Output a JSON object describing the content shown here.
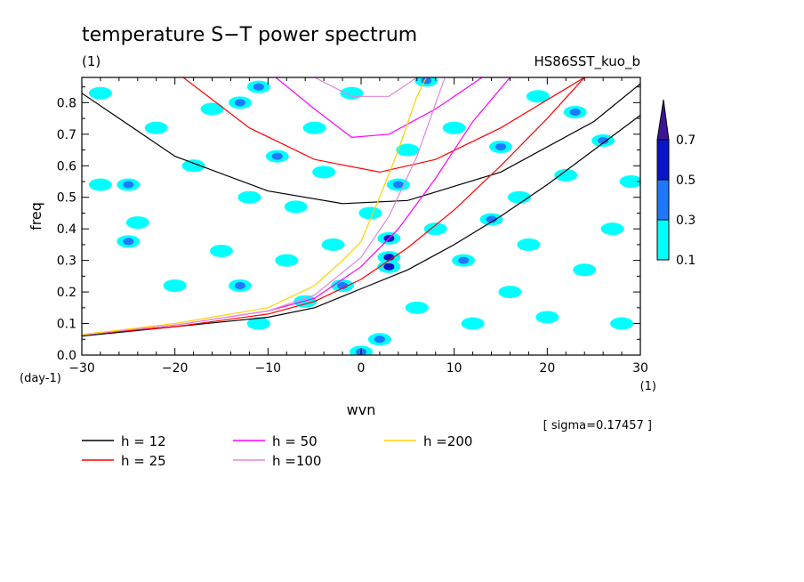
{
  "chart_data": {
    "type": "heatmap",
    "title": "temperature S−T power spectrum",
    "top_left_label": "(1)",
    "top_right_label": "HS86SST_kuo_b",
    "xlabel": "wvn",
    "x_unit": "(1)",
    "ylabel": "freq",
    "y_unit": "(day-1)",
    "xlim": [
      -30,
      30
    ],
    "ylim": [
      0,
      0.88
    ],
    "x_ticks": [
      -30,
      -20,
      -10,
      0,
      10,
      20,
      30
    ],
    "y_ticks": [
      0.0,
      0.1,
      0.2,
      0.3,
      0.4,
      0.5,
      0.6,
      0.7,
      0.8
    ],
    "sigma_note": "[ sigma=0.17457 ]",
    "colorbar": {
      "levels": [
        "0.1",
        "0.3",
        "0.5",
        "0.7"
      ],
      "colors": [
        "#00ffff",
        "#1e78ff",
        "#0a14c8",
        "#3c1496"
      ]
    },
    "contour_blobs": [
      {
        "x": -28,
        "y": 0.83,
        "level": 0.1
      },
      {
        "x": -25,
        "y": 0.54,
        "level": 0.3
      },
      {
        "x": -28,
        "y": 0.54,
        "level": 0.1
      },
      {
        "x": -24,
        "y": 0.42,
        "level": 0.1
      },
      {
        "x": -25,
        "y": 0.36,
        "level": 0.3
      },
      {
        "x": -22,
        "y": 0.72,
        "level": 0.1
      },
      {
        "x": -20,
        "y": 0.22,
        "level": 0.1
      },
      {
        "x": -18,
        "y": 0.6,
        "level": 0.1
      },
      {
        "x": -16,
        "y": 0.78,
        "level": 0.1
      },
      {
        "x": -15,
        "y": 0.33,
        "level": 0.1
      },
      {
        "x": -13,
        "y": 0.8,
        "level": 0.3
      },
      {
        "x": -13,
        "y": 0.22,
        "level": 0.3
      },
      {
        "x": -12,
        "y": 0.5,
        "level": 0.1
      },
      {
        "x": -11,
        "y": 0.1,
        "level": 0.1
      },
      {
        "x": -11,
        "y": 0.85,
        "level": 0.3
      },
      {
        "x": -9,
        "y": 0.63,
        "level": 0.3
      },
      {
        "x": -8,
        "y": 0.3,
        "level": 0.1
      },
      {
        "x": -7,
        "y": 0.47,
        "level": 0.1
      },
      {
        "x": -6,
        "y": 0.17,
        "level": 0.1
      },
      {
        "x": -5,
        "y": 0.72,
        "level": 0.1
      },
      {
        "x": -4,
        "y": 0.58,
        "level": 0.1
      },
      {
        "x": -3,
        "y": 0.35,
        "level": 0.1
      },
      {
        "x": -2,
        "y": 0.22,
        "level": 0.3
      },
      {
        "x": -1,
        "y": 0.83,
        "level": 0.1
      },
      {
        "x": 0,
        "y": 0.01,
        "level": 0.3
      },
      {
        "x": 1,
        "y": 0.45,
        "level": 0.1
      },
      {
        "x": 2,
        "y": 0.05,
        "level": 0.3
      },
      {
        "x": 3,
        "y": 0.37,
        "level": 0.5
      },
      {
        "x": 3,
        "y": 0.31,
        "level": 0.5
      },
      {
        "x": 3,
        "y": 0.28,
        "level": 0.5
      },
      {
        "x": 4,
        "y": 0.54,
        "level": 0.3
      },
      {
        "x": 5,
        "y": 0.65,
        "level": 0.1
      },
      {
        "x": 6,
        "y": 0.15,
        "level": 0.1
      },
      {
        "x": 7,
        "y": 0.87,
        "level": 0.3
      },
      {
        "x": 8,
        "y": 0.4,
        "level": 0.1
      },
      {
        "x": 10,
        "y": 0.72,
        "level": 0.1
      },
      {
        "x": 11,
        "y": 0.3,
        "level": 0.3
      },
      {
        "x": 12,
        "y": 0.1,
        "level": 0.1
      },
      {
        "x": 14,
        "y": 0.43,
        "level": 0.3
      },
      {
        "x": 15,
        "y": 0.66,
        "level": 0.3
      },
      {
        "x": 16,
        "y": 0.2,
        "level": 0.1
      },
      {
        "x": 17,
        "y": 0.5,
        "level": 0.1
      },
      {
        "x": 18,
        "y": 0.35,
        "level": 0.1
      },
      {
        "x": 19,
        "y": 0.82,
        "level": 0.1
      },
      {
        "x": 20,
        "y": 0.12,
        "level": 0.1
      },
      {
        "x": 22,
        "y": 0.57,
        "level": 0.1
      },
      {
        "x": 23,
        "y": 0.77,
        "level": 0.3
      },
      {
        "x": 24,
        "y": 0.27,
        "level": 0.1
      },
      {
        "x": 26,
        "y": 0.68,
        "level": 0.3
      },
      {
        "x": 27,
        "y": 0.4,
        "level": 0.1
      },
      {
        "x": 28,
        "y": 0.1,
        "level": 0.1
      },
      {
        "x": 29,
        "y": 0.55,
        "level": 0.1
      }
    ],
    "dispersion_curves": [
      {
        "name": "h = 12",
        "color": "#000000",
        "points": [
          [
            -30,
            0.83
          ],
          [
            -20,
            0.63
          ],
          [
            -10,
            0.52
          ],
          [
            -2,
            0.48
          ],
          [
            5,
            0.49
          ],
          [
            15,
            0.58
          ],
          [
            25,
            0.74
          ],
          [
            30,
            0.86
          ]
        ]
      },
      {
        "name": "h = 25",
        "color": "#ff0000",
        "points": [
          [
            -20,
            0.9
          ],
          [
            -12,
            0.72
          ],
          [
            -5,
            0.62
          ],
          [
            2,
            0.58
          ],
          [
            8,
            0.62
          ],
          [
            15,
            0.72
          ],
          [
            24,
            0.88
          ]
        ]
      },
      {
        "name": "h = 50",
        "color": "#ff00ff",
        "points": [
          [
            -10,
            0.9
          ],
          [
            -5,
            0.78
          ],
          [
            -1,
            0.69
          ],
          [
            3,
            0.7
          ],
          [
            8,
            0.78
          ],
          [
            13,
            0.88
          ]
        ]
      },
      {
        "name": "h =100",
        "color": "#dd88dd",
        "points": [
          [
            -5,
            0.88
          ],
          [
            -1,
            0.82
          ],
          [
            3,
            0.82
          ],
          [
            6,
            0.88
          ]
        ]
      }
    ],
    "low_curves": [
      {
        "name": "h = 12",
        "color": "#000000",
        "points": [
          [
            -30,
            0.06
          ],
          [
            -20,
            0.09
          ],
          [
            -10,
            0.12
          ],
          [
            -5,
            0.15
          ],
          [
            0,
            0.21
          ],
          [
            5,
            0.27
          ],
          [
            10,
            0.35
          ],
          [
            15,
            0.44
          ],
          [
            20,
            0.54
          ],
          [
            25,
            0.65
          ],
          [
            30,
            0.76
          ]
        ]
      },
      {
        "name": "h = 25",
        "color": "#ff0000",
        "points": [
          [
            -30,
            0.065
          ],
          [
            -20,
            0.09
          ],
          [
            -10,
            0.13
          ],
          [
            -5,
            0.17
          ],
          [
            0,
            0.24
          ],
          [
            5,
            0.34
          ],
          [
            10,
            0.46
          ],
          [
            15,
            0.6
          ],
          [
            20,
            0.75
          ],
          [
            24,
            0.88
          ]
        ]
      },
      {
        "name": "h = 50",
        "color": "#ff00ff",
        "points": [
          [
            -30,
            0.065
          ],
          [
            -20,
            0.095
          ],
          [
            -10,
            0.14
          ],
          [
            -5,
            0.18
          ],
          [
            0,
            0.28
          ],
          [
            4,
            0.4
          ],
          [
            8,
            0.56
          ],
          [
            12,
            0.74
          ],
          [
            16,
            0.88
          ]
        ]
      },
      {
        "name": "h =100",
        "color": "#dd88dd",
        "points": [
          [
            -30,
            0.065
          ],
          [
            -20,
            0.095
          ],
          [
            -10,
            0.14
          ],
          [
            -5,
            0.19
          ],
          [
            0,
            0.31
          ],
          [
            3,
            0.44
          ],
          [
            6,
            0.63
          ],
          [
            9,
            0.88
          ]
        ]
      },
      {
        "name": "h =200",
        "color": "#ffd000",
        "points": [
          [
            -30,
            0.065
          ],
          [
            -20,
            0.1
          ],
          [
            -10,
            0.15
          ],
          [
            -5,
            0.22
          ],
          [
            -2,
            0.3
          ],
          [
            0,
            0.36
          ],
          [
            2,
            0.5
          ],
          [
            4,
            0.65
          ],
          [
            6,
            0.82
          ],
          [
            7,
            0.88
          ]
        ]
      }
    ],
    "legend": [
      {
        "label": "h = 12",
        "color": "#000000"
      },
      {
        "label": "h = 25",
        "color": "#ff0000"
      },
      {
        "label": "h = 50",
        "color": "#ff00ff"
      },
      {
        "label": "h =100",
        "color": "#dd88dd"
      },
      {
        "label": "h =200",
        "color": "#ffd000"
      }
    ]
  }
}
